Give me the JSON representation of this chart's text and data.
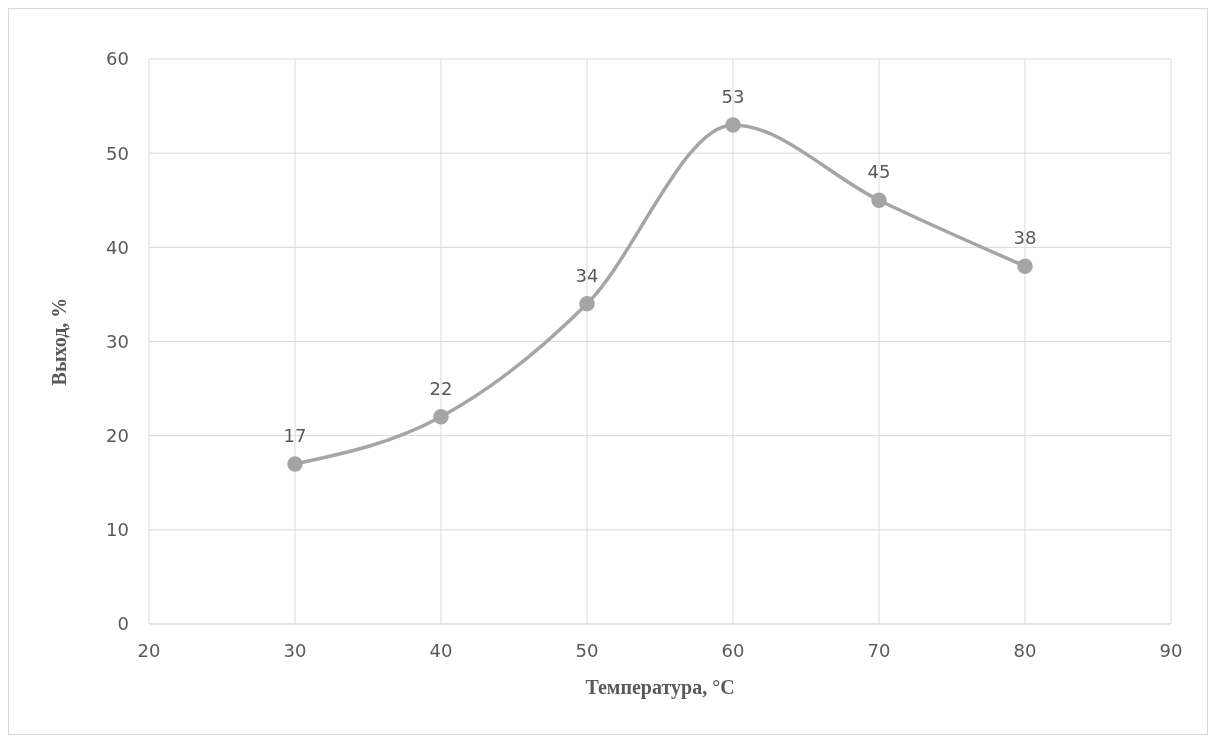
{
  "chart_data": {
    "type": "line",
    "xlabel": "Температура,  °C",
    "ylabel": "Выход,  %",
    "x": [
      30,
      40,
      50,
      60,
      70,
      80
    ],
    "series": [
      {
        "color": "#a5a5a5",
        "values": [
          17,
          22,
          34,
          53,
          45,
          38
        ]
      }
    ],
    "xlim": [
      20,
      90
    ],
    "xticks": [
      20,
      30,
      40,
      50,
      60,
      70,
      80,
      90
    ],
    "ylim": [
      0,
      60
    ],
    "yticks": [
      0,
      10,
      20,
      30,
      40,
      50,
      60
    ],
    "grid": true,
    "marker": "circle",
    "data_labels": true
  }
}
